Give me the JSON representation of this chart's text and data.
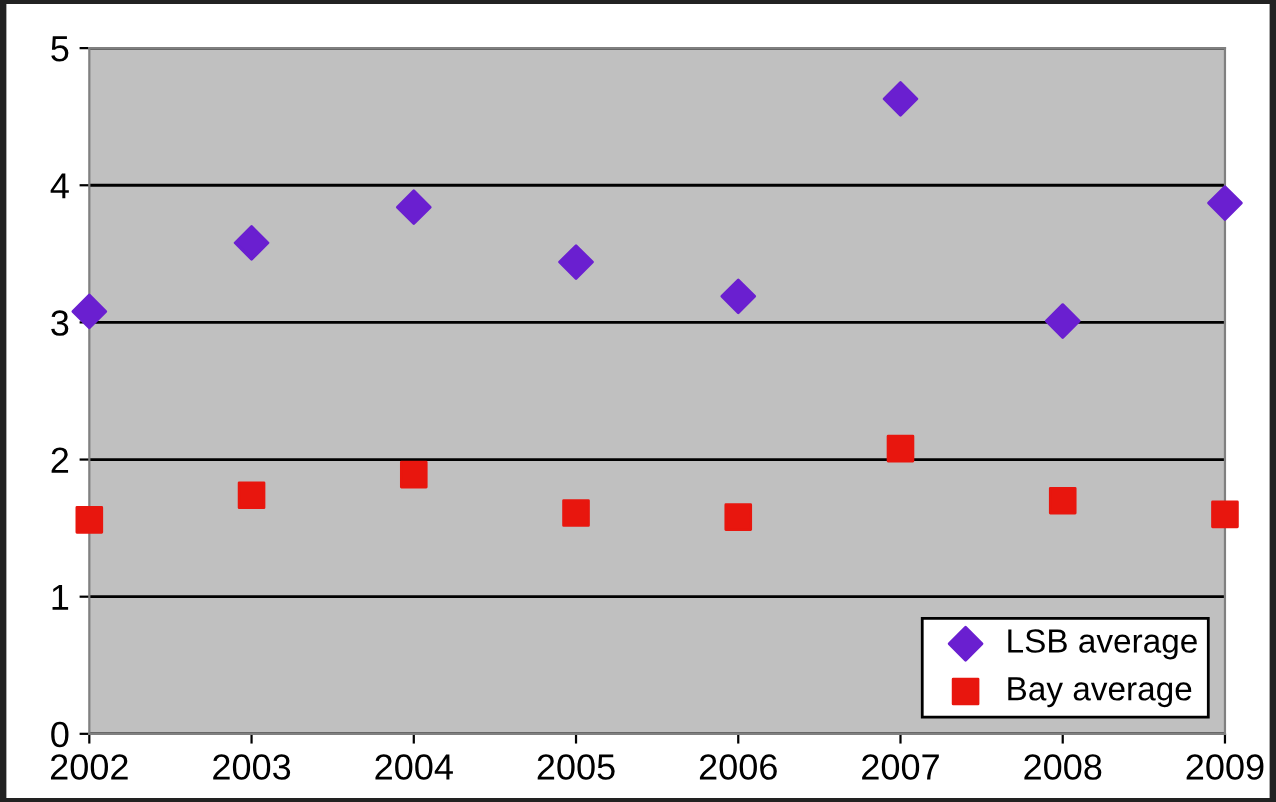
{
  "chart_data": {
    "type": "scatter",
    "x": [
      2002,
      2003,
      2004,
      2005,
      2006,
      2007,
      2008,
      2009
    ],
    "series": [
      {
        "name": "LSB average",
        "color": "#6a1fd0",
        "marker": "diamond",
        "values": [
          3.08,
          3.58,
          3.84,
          3.44,
          3.19,
          4.63,
          3.01,
          3.87
        ]
      },
      {
        "name": "Bay average",
        "color": "#e8160e",
        "marker": "square",
        "values": [
          1.56,
          1.74,
          1.89,
          1.61,
          1.58,
          2.08,
          1.7,
          1.6
        ]
      }
    ],
    "xlim": [
      2002,
      2009
    ],
    "xticks": [
      2002,
      2003,
      2004,
      2005,
      2006,
      2007,
      2008,
      2009
    ],
    "ylim": [
      0,
      5
    ],
    "yticks": [
      0,
      1,
      2,
      3,
      4,
      5
    ],
    "grid": "y",
    "legend": "bottom right"
  }
}
